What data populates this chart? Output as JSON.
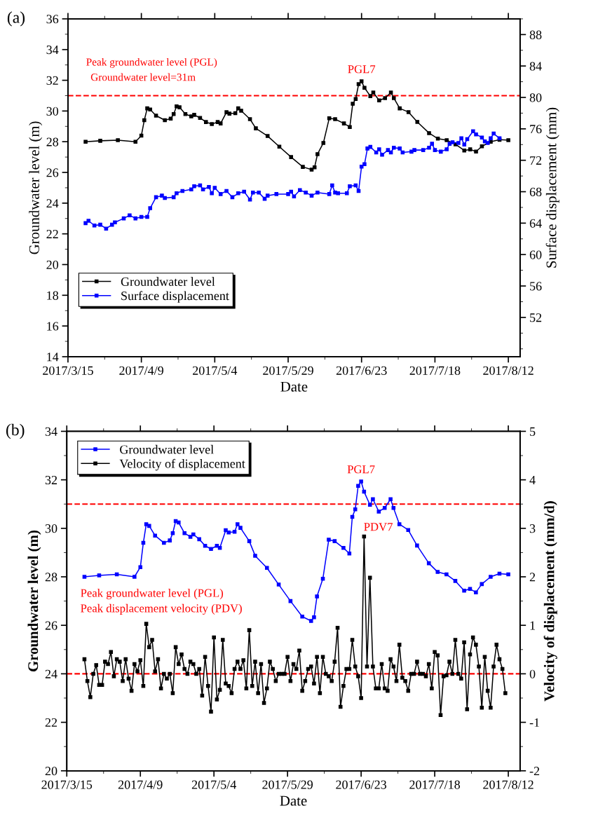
{
  "chart_data": [
    {
      "type": "line",
      "title": "(a)",
      "xlabel": "Date",
      "ylabel": "Groundwater level (m)",
      "y2label": "Surface displacement (mm)",
      "marker": "square",
      "line_style": "solid",
      "legend": "lower left",
      "xlim": [
        "2017-03-15",
        "2017-08-16"
      ],
      "xticks": [
        {
          "value": "2017-03-15",
          "label": "2017/3/15"
        },
        {
          "value": "2017-04-09",
          "label": "2017/4/9"
        },
        {
          "value": "2017-05-04",
          "label": "2017/5/4"
        },
        {
          "value": "2017-05-29",
          "label": "2017/5/29"
        },
        {
          "value": "2017-06-23",
          "label": "2017/6/23"
        },
        {
          "value": "2017-07-18",
          "label": "2017/7/18"
        },
        {
          "value": "2017-08-12",
          "label": "2017/8/12"
        }
      ],
      "ylim": [
        14,
        36
      ],
      "yticks": [
        14,
        16,
        18,
        20,
        22,
        24,
        26,
        28,
        30,
        32,
        34,
        36
      ],
      "y2lim": [
        47,
        90
      ],
      "y2ticks": [
        52,
        56,
        60,
        64,
        68,
        72,
        76,
        80,
        84,
        88
      ],
      "ref_lines": [
        {
          "axis": "y",
          "value": 31,
          "label": "Groundwater level=31m",
          "color": "#ff0000",
          "line_style": "dashed"
        }
      ],
      "annotations": [
        "Peak groundwater level (PGL)",
        {
          "text": "PGL7",
          "x": "2017-06-23",
          "y": 31.93
        }
      ],
      "series": [
        {
          "name": "Groundwater level",
          "color": "#000000",
          "x": [
            "2017-03-21",
            "2017-03-26",
            "2017-04-01",
            "2017-04-07",
            "2017-04-09",
            "2017-04-10",
            "2017-04-11",
            "2017-04-12",
            "2017-04-14",
            "2017-04-17",
            "2017-04-19",
            "2017-04-20",
            "2017-04-21",
            "2017-04-22",
            "2017-04-24",
            "2017-04-26",
            "2017-04-27",
            "2017-04-29",
            "2017-05-01",
            "2017-05-03",
            "2017-05-05",
            "2017-05-06",
            "2017-05-08",
            "2017-05-09",
            "2017-05-11",
            "2017-05-12",
            "2017-05-13",
            "2017-05-16",
            "2017-05-18",
            "2017-05-22",
            "2017-05-26",
            "2017-05-30",
            "2017-06-03",
            "2017-06-06",
            "2017-06-07",
            "2017-06-08",
            "2017-06-10",
            "2017-06-12",
            "2017-06-14",
            "2017-06-17",
            "2017-06-19",
            "2017-06-20",
            "2017-06-21",
            "2017-06-22",
            "2017-06-23",
            "2017-06-24",
            "2017-06-26",
            "2017-06-27",
            "2017-06-29",
            "2017-07-01",
            "2017-07-03",
            "2017-07-04",
            "2017-07-06",
            "2017-07-09",
            "2017-07-12",
            "2017-07-16",
            "2017-07-19",
            "2017-07-22",
            "2017-07-25",
            "2017-07-28",
            "2017-07-30",
            "2017-08-01",
            "2017-08-03",
            "2017-08-06",
            "2017-08-09",
            "2017-08-12"
          ],
          "values": [
            28.0,
            28.06,
            28.1,
            28.0,
            28.4,
            29.4,
            30.17,
            30.1,
            29.7,
            29.4,
            29.5,
            29.8,
            30.3,
            30.24,
            29.8,
            29.65,
            29.75,
            29.55,
            29.28,
            29.15,
            29.28,
            29.19,
            29.92,
            29.83,
            29.86,
            30.17,
            30.02,
            29.47,
            28.87,
            28.37,
            27.68,
            27.0,
            26.36,
            26.18,
            26.33,
            27.19,
            27.92,
            29.53,
            29.47,
            29.19,
            28.96,
            30.47,
            30.78,
            31.75,
            31.93,
            31.51,
            30.97,
            31.2,
            30.69,
            30.84,
            31.2,
            30.84,
            30.17,
            29.93,
            29.29,
            28.56,
            28.2,
            28.1,
            27.83,
            27.43,
            27.5,
            27.36,
            27.7,
            28.0,
            28.13,
            28.1
          ]
        },
        {
          "name": "Surface displacement",
          "color": "#0000ff",
          "axis": "y2",
          "x": [
            "2017-03-21",
            "2017-03-22",
            "2017-03-24",
            "2017-03-26",
            "2017-03-28",
            "2017-03-30",
            "2017-03-31",
            "2017-04-03",
            "2017-04-05",
            "2017-04-07",
            "2017-04-09",
            "2017-04-11",
            "2017-04-12",
            "2017-04-14",
            "2017-04-16",
            "2017-04-17",
            "2017-04-20",
            "2017-04-21",
            "2017-04-23",
            "2017-04-26",
            "2017-04-27",
            "2017-04-29",
            "2017-04-30",
            "2017-05-02",
            "2017-05-03",
            "2017-05-04",
            "2017-05-06",
            "2017-05-08",
            "2017-05-10",
            "2017-05-12",
            "2017-05-14",
            "2017-05-16",
            "2017-05-17",
            "2017-05-19",
            "2017-05-21",
            "2017-05-22",
            "2017-05-25",
            "2017-05-29",
            "2017-05-30",
            "2017-05-31",
            "2017-06-02",
            "2017-06-04",
            "2017-06-06",
            "2017-06-08",
            "2017-06-12",
            "2017-06-13",
            "2017-06-14",
            "2017-06-15",
            "2017-06-18",
            "2017-06-19",
            "2017-06-21",
            "2017-06-22",
            "2017-06-23",
            "2017-06-24",
            "2017-06-25",
            "2017-06-26",
            "2017-06-28",
            "2017-06-29",
            "2017-06-30",
            "2017-07-02",
            "2017-07-03",
            "2017-07-04",
            "2017-07-06",
            "2017-07-07",
            "2017-07-10",
            "2017-07-11",
            "2017-07-14",
            "2017-07-16",
            "2017-07-17",
            "2017-07-18",
            "2017-07-20",
            "2017-07-22",
            "2017-07-23",
            "2017-07-24",
            "2017-07-26",
            "2017-07-27",
            "2017-07-28",
            "2017-07-29",
            "2017-07-31",
            "2017-08-01",
            "2017-08-03",
            "2017-08-04",
            "2017-08-05",
            "2017-08-06",
            "2017-08-07",
            "2017-08-09"
          ],
          "values": [
            64.0,
            64.3,
            63.7,
            63.8,
            63.3,
            63.8,
            64.1,
            64.6,
            65.0,
            64.6,
            64.8,
            64.8,
            65.9,
            67.3,
            67.5,
            67.2,
            67.3,
            67.8,
            68.1,
            68.3,
            68.7,
            68.8,
            68.3,
            68.6,
            67.8,
            68.5,
            67.7,
            68.1,
            67.3,
            67.8,
            68.0,
            67.0,
            67.9,
            67.9,
            67.1,
            67.5,
            67.7,
            67.7,
            68.0,
            67.4,
            68.2,
            67.9,
            67.5,
            67.9,
            67.7,
            68.8,
            67.9,
            67.8,
            67.8,
            68.7,
            68.8,
            68.1,
            71.2,
            71.5,
            73.5,
            73.7,
            73.0,
            73.4,
            72.7,
            73.3,
            73.0,
            73.6,
            73.5,
            73.0,
            73.1,
            73.3,
            73.3,
            73.6,
            74.1,
            73.3,
            73.1,
            73.4,
            74.1,
            74.3,
            74.2,
            74.8,
            74.0,
            74.7,
            75.7,
            75.3,
            74.9,
            74.4,
            74.2,
            74.8,
            75.4,
            74.8
          ]
        }
      ]
    },
    {
      "type": "line",
      "title": "(b)",
      "xlabel": "Date",
      "ylabel": "Groundwater level (m)",
      "y2label": "Velocity of displacement (mm/d)",
      "marker": "square",
      "line_style": "solid",
      "legend": "top left",
      "xlim": [
        "2017-03-15",
        "2017-08-16"
      ],
      "xticks": [
        {
          "value": "2017-03-15",
          "label": "2017/3/15"
        },
        {
          "value": "2017-04-09",
          "label": "2017/4/9"
        },
        {
          "value": "2017-05-04",
          "label": "2017/5/4"
        },
        {
          "value": "2017-05-29",
          "label": "2017/5/29"
        },
        {
          "value": "2017-06-23",
          "label": "2017/6/23"
        },
        {
          "value": "2017-07-18",
          "label": "2017/7/18"
        },
        {
          "value": "2017-08-12",
          "label": "2017/8/12"
        }
      ],
      "ylim": [
        20,
        34
      ],
      "yticks": [
        20,
        22,
        24,
        26,
        28,
        30,
        32,
        34
      ],
      "y2lim": [
        -2,
        5
      ],
      "y2ticks": [
        {
          "value": -2,
          "label": "-2"
        },
        {
          "value": -1,
          "label": "-1"
        },
        0,
        1,
        2,
        3,
        4,
        5
      ],
      "ref_lines": [
        {
          "axis": "y",
          "value": 31,
          "color": "#ff0000",
          "line_style": "dashed"
        },
        {
          "axis": "y2",
          "value": 0,
          "color": "#ff0000",
          "line_style": "dashed"
        }
      ],
      "annotations": [
        "Peak groundwater level (PGL)",
        "Peak displacement velocity (PDV)",
        "PDV7",
        {
          "text": "PGL7",
          "x": "2017-06-23",
          "y": 31.93
        }
      ],
      "series": [
        {
          "name": "Groundwater level",
          "color": "#0000ff",
          "x": [
            "2017-03-21",
            "2017-03-26",
            "2017-04-01",
            "2017-04-07",
            "2017-04-09",
            "2017-04-10",
            "2017-04-11",
            "2017-04-12",
            "2017-04-14",
            "2017-04-17",
            "2017-04-19",
            "2017-04-20",
            "2017-04-21",
            "2017-04-22",
            "2017-04-24",
            "2017-04-26",
            "2017-04-27",
            "2017-04-29",
            "2017-05-01",
            "2017-05-03",
            "2017-05-05",
            "2017-05-06",
            "2017-05-08",
            "2017-05-09",
            "2017-05-11",
            "2017-05-12",
            "2017-05-13",
            "2017-05-16",
            "2017-05-18",
            "2017-05-22",
            "2017-05-26",
            "2017-05-30",
            "2017-06-03",
            "2017-06-06",
            "2017-06-07",
            "2017-06-08",
            "2017-06-10",
            "2017-06-12",
            "2017-06-14",
            "2017-06-17",
            "2017-06-19",
            "2017-06-20",
            "2017-06-21",
            "2017-06-22",
            "2017-06-23",
            "2017-06-24",
            "2017-06-26",
            "2017-06-27",
            "2017-06-29",
            "2017-07-01",
            "2017-07-03",
            "2017-07-04",
            "2017-07-06",
            "2017-07-09",
            "2017-07-12",
            "2017-07-16",
            "2017-07-19",
            "2017-07-22",
            "2017-07-25",
            "2017-07-28",
            "2017-07-30",
            "2017-08-01",
            "2017-08-03",
            "2017-08-06",
            "2017-08-09",
            "2017-08-12"
          ],
          "values": [
            28.0,
            28.06,
            28.1,
            28.0,
            28.4,
            29.4,
            30.17,
            30.1,
            29.7,
            29.4,
            29.5,
            29.8,
            30.3,
            30.24,
            29.8,
            29.65,
            29.75,
            29.55,
            29.28,
            29.15,
            29.28,
            29.19,
            29.92,
            29.83,
            29.86,
            30.17,
            30.02,
            29.47,
            28.87,
            28.37,
            27.68,
            27.0,
            26.36,
            26.18,
            26.33,
            27.19,
            27.92,
            29.53,
            29.47,
            29.19,
            28.96,
            30.47,
            30.78,
            31.75,
            31.93,
            31.51,
            30.97,
            31.2,
            30.69,
            30.84,
            31.2,
            30.84,
            30.17,
            29.93,
            29.29,
            28.56,
            28.2,
            28.1,
            27.83,
            27.43,
            27.5,
            27.36,
            27.7,
            28.0,
            28.13,
            28.1
          ]
        },
        {
          "name": "Velocity of displacement",
          "color": "#000000",
          "axis": "y2",
          "x": [
            "2017-03-21",
            "2017-03-22",
            "2017-03-23",
            "2017-03-24",
            "2017-03-25",
            "2017-03-26",
            "2017-03-27",
            "2017-03-28",
            "2017-03-29",
            "2017-03-30",
            "2017-03-31",
            "2017-04-01",
            "2017-04-02",
            "2017-04-03",
            "2017-04-04",
            "2017-04-05",
            "2017-04-06",
            "2017-04-07",
            "2017-04-08",
            "2017-04-09",
            "2017-04-10",
            "2017-04-11",
            "2017-04-12",
            "2017-04-13",
            "2017-04-14",
            "2017-04-15",
            "2017-04-16",
            "2017-04-17",
            "2017-04-18",
            "2017-04-19",
            "2017-04-20",
            "2017-04-21",
            "2017-04-22",
            "2017-04-23",
            "2017-04-24",
            "2017-04-25",
            "2017-04-26",
            "2017-04-27",
            "2017-04-28",
            "2017-04-29",
            "2017-04-30",
            "2017-05-01",
            "2017-05-02",
            "2017-05-03",
            "2017-05-04",
            "2017-05-05",
            "2017-05-06",
            "2017-05-07",
            "2017-05-08",
            "2017-05-09",
            "2017-05-10",
            "2017-05-11",
            "2017-05-12",
            "2017-05-13",
            "2017-05-14",
            "2017-05-15",
            "2017-05-16",
            "2017-05-17",
            "2017-05-18",
            "2017-05-19",
            "2017-05-20",
            "2017-05-21",
            "2017-05-22",
            "2017-05-23",
            "2017-05-24",
            "2017-05-25",
            "2017-05-26",
            "2017-05-27",
            "2017-05-28",
            "2017-05-29",
            "2017-05-30",
            "2017-05-31",
            "2017-06-01",
            "2017-06-02",
            "2017-06-03",
            "2017-06-04",
            "2017-06-05",
            "2017-06-06",
            "2017-06-07",
            "2017-06-08",
            "2017-06-09",
            "2017-06-10",
            "2017-06-11",
            "2017-06-12",
            "2017-06-13",
            "2017-06-14",
            "2017-06-15",
            "2017-06-16",
            "2017-06-17",
            "2017-06-18",
            "2017-06-19",
            "2017-06-20",
            "2017-06-21",
            "2017-06-22",
            "2017-06-23",
            "2017-06-24",
            "2017-06-25",
            "2017-06-26",
            "2017-06-27",
            "2017-06-28",
            "2017-06-29",
            "2017-06-30",
            "2017-07-01",
            "2017-07-02",
            "2017-07-03",
            "2017-07-04",
            "2017-07-05",
            "2017-07-06",
            "2017-07-07",
            "2017-07-08",
            "2017-07-09",
            "2017-07-10",
            "2017-07-11",
            "2017-07-12",
            "2017-07-13",
            "2017-07-14",
            "2017-07-15",
            "2017-07-16",
            "2017-07-17",
            "2017-07-18",
            "2017-07-19",
            "2017-07-20",
            "2017-07-21",
            "2017-07-22",
            "2017-07-23",
            "2017-07-24",
            "2017-07-25",
            "2017-07-26",
            "2017-07-27",
            "2017-07-28",
            "2017-07-29",
            "2017-07-30",
            "2017-07-31",
            "2017-08-01",
            "2017-08-02",
            "2017-08-03",
            "2017-08-04",
            "2017-08-05",
            "2017-08-06",
            "2017-08-07",
            "2017-08-08",
            "2017-08-09",
            "2017-08-10",
            "2017-08-11"
          ],
          "values": [
            0.3,
            -0.15,
            -0.48,
            0,
            0.18,
            -0.23,
            -0.23,
            0.25,
            0.2,
            0.45,
            -0.05,
            0.3,
            0.25,
            -0.15,
            0.3,
            -0.1,
            -0.35,
            0.2,
            0.05,
            0.28,
            -0.25,
            1.03,
            0.55,
            0.7,
            0.05,
            0.3,
            -0.3,
            0,
            -0.1,
            0,
            -0.4,
            0.55,
            0.2,
            0.4,
            0.1,
            0,
            0.25,
            0.2,
            0,
            0.1,
            -0.45,
            0.35,
            -0.25,
            -0.78,
            0.75,
            -0.53,
            -0.33,
            0.7,
            -0.2,
            -0.25,
            -0.4,
            0.1,
            0.25,
            0.1,
            0.28,
            -0.3,
            0.9,
            -0.25,
            0.25,
            -0.4,
            0.2,
            -0.6,
            -0.3,
            0.25,
            0.1,
            -0.15,
            0,
            0,
            0,
            0.35,
            -0.15,
            0.2,
            0.1,
            0.48,
            -0.35,
            -0.15,
            0.1,
            0.15,
            -0.2,
            0.35,
            -0.4,
            0.35,
            0,
            -0.05,
            -0.15,
            0.25,
            0.95,
            -0.68,
            -0.25,
            0.1,
            0.1,
            0.7,
            0.15,
            -0.05,
            -0.5,
            2.83,
            0.15,
            1.98,
            0.15,
            -0.3,
            -0.3,
            0.2,
            -0.3,
            -0.35,
            0.3,
            0.15,
            -0.15,
            0.6,
            -0.08,
            -0.15,
            -0.35,
            0,
            0,
            0.25,
            0,
            0,
            -0.05,
            0.2,
            -0.3,
            0.45,
            0.38,
            -0.85,
            -0.05,
            -0.03,
            0.25,
            0,
            0.7,
            0,
            -0.1,
            0.65,
            -0.73,
            0.4,
            0.75,
            0.6,
            0.15,
            -0.7,
            0.35,
            -0.35,
            -0.7,
            0.15,
            0.6,
            0.3,
            0.1,
            -0.4
          ]
        }
      ]
    }
  ]
}
